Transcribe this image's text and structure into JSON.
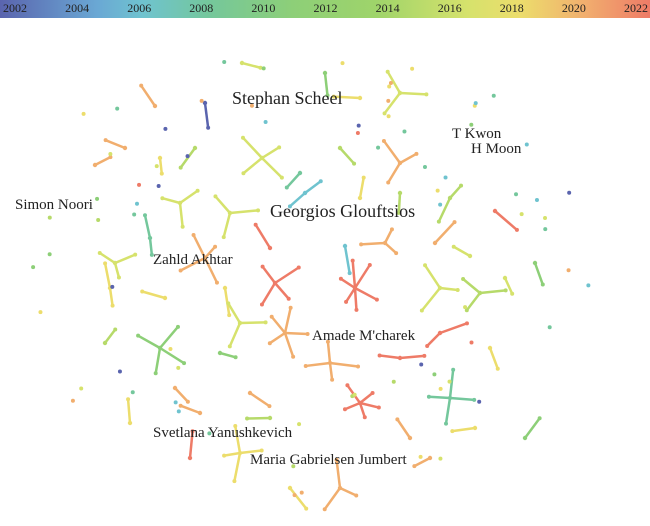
{
  "legend": {
    "years": [
      "2002",
      "2004",
      "2006",
      "2008",
      "2010",
      "2012",
      "2014",
      "2016",
      "2018",
      "2020",
      "2022"
    ]
  },
  "labels": [
    "Stephan Scheel",
    "T Kwon",
    "H Moon",
    "Simon Noori",
    "Georgios Glouftsios",
    "Zahld Akhtar",
    "Amade M'charek",
    "Svetlana Yanushkevich",
    "Maria Gabrielsen Jumbert"
  ]
}
